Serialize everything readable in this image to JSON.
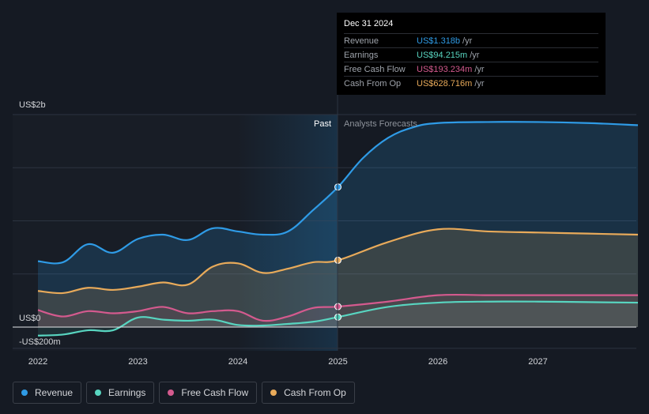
{
  "chart_data": {
    "type": "area",
    "y_unit_label_top": "US$2b",
    "y_unit_label_zero": "US$0",
    "y_unit_label_bottom": "-US$200m",
    "ylim": [
      -200,
      2000
    ],
    "xlim": [
      2022,
      2028
    ],
    "x_ticks": [
      2022,
      2023,
      2024,
      2025,
      2026,
      2027
    ],
    "x_tick_labels": [
      "2022",
      "2023",
      "2024",
      "2025",
      "2026",
      "2027"
    ],
    "past_label": "Past",
    "forecast_label": "Analysts Forecasts",
    "divider_x": 2025.0,
    "series": [
      {
        "name": "Revenue",
        "color": "#2f9be6",
        "x": [
          2022.0,
          2022.25,
          2022.5,
          2022.75,
          2023.0,
          2023.25,
          2023.5,
          2023.75,
          2024.0,
          2024.25,
          2024.5,
          2024.75,
          2025.0,
          2025.25,
          2025.5,
          2025.75,
          2026.0,
          2026.5,
          2027.0,
          2027.5,
          2028.0
        ],
        "y": [
          620,
          610,
          780,
          700,
          830,
          870,
          820,
          930,
          900,
          870,
          900,
          1100,
          1318,
          1590,
          1780,
          1880,
          1920,
          1930,
          1930,
          1920,
          1900
        ]
      },
      {
        "name": "Earnings",
        "color": "#58d5c0",
        "x": [
          2022.0,
          2022.25,
          2022.5,
          2022.75,
          2023.0,
          2023.25,
          2023.5,
          2023.75,
          2024.0,
          2024.25,
          2024.5,
          2024.75,
          2025.0,
          2025.5,
          2026.0,
          2026.5,
          2027.0,
          2027.5,
          2028.0
        ],
        "y": [
          -80,
          -70,
          -30,
          -30,
          90,
          70,
          60,
          70,
          20,
          15,
          30,
          50,
          94,
          190,
          230,
          240,
          240,
          235,
          230
        ]
      },
      {
        "name": "Free Cash Flow",
        "color": "#d45a8e",
        "x": [
          2022.0,
          2022.25,
          2022.5,
          2022.75,
          2023.0,
          2023.25,
          2023.5,
          2023.75,
          2024.0,
          2024.25,
          2024.5,
          2024.75,
          2025.0,
          2025.5,
          2026.0,
          2026.5,
          2027.0,
          2027.5,
          2028.0
        ],
        "y": [
          160,
          100,
          150,
          130,
          150,
          190,
          130,
          150,
          150,
          60,
          100,
          180,
          193,
          240,
          300,
          300,
          300,
          300,
          300
        ]
      },
      {
        "name": "Cash From Op",
        "color": "#e8aa5a",
        "x": [
          2022.0,
          2022.25,
          2022.5,
          2022.75,
          2023.0,
          2023.25,
          2023.5,
          2023.75,
          2024.0,
          2024.25,
          2024.5,
          2024.75,
          2025.0,
          2025.5,
          2026.0,
          2026.5,
          2027.0,
          2027.5,
          2028.0
        ],
        "y": [
          340,
          320,
          370,
          350,
          380,
          420,
          400,
          570,
          600,
          510,
          550,
          610,
          629,
          800,
          920,
          900,
          890,
          880,
          870
        ]
      }
    ]
  },
  "tooltip": {
    "date": "Dec 31 2024",
    "rows": [
      {
        "label": "Revenue",
        "value": "US$1.318b",
        "unit": "/yr",
        "color": "#2f9be6"
      },
      {
        "label": "Earnings",
        "value": "US$94.215m",
        "unit": "/yr",
        "color": "#58d5c0"
      },
      {
        "label": "Free Cash Flow",
        "value": "US$193.234m",
        "unit": "/yr",
        "color": "#d45a8e"
      },
      {
        "label": "Cash From Op",
        "value": "US$628.716m",
        "unit": "/yr",
        "color": "#e8aa5a"
      }
    ]
  },
  "legend": [
    {
      "label": "Revenue",
      "color": "#2f9be6"
    },
    {
      "label": "Earnings",
      "color": "#58d5c0"
    },
    {
      "label": "Free Cash Flow",
      "color": "#d45a8e"
    },
    {
      "label": "Cash From Op",
      "color": "#e8aa5a"
    }
  ]
}
